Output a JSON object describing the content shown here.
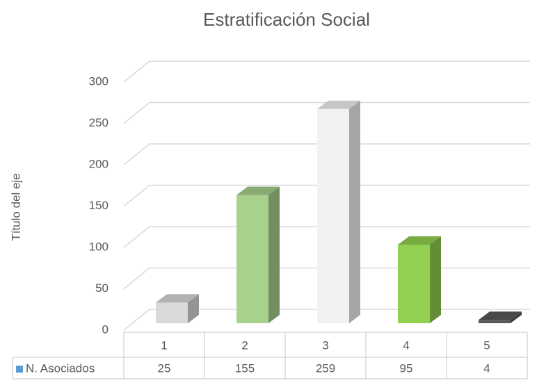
{
  "chart_data": {
    "type": "bar3d",
    "title": "Estratificación Social",
    "y_axis_label": "Título del eje",
    "categories": [
      "1",
      "2",
      "3",
      "4",
      "5"
    ],
    "series": [
      {
        "name": "N. Asociados",
        "color": "#5b9bd5",
        "values": [
          25,
          155,
          259,
          95,
          4
        ],
        "colors": [
          "#d9d9d9",
          "#a9d18e",
          "#f2f2f2",
          "#92d050",
          "#595959"
        ]
      }
    ],
    "ylim": [
      0,
      300
    ],
    "yticks": [
      0,
      50,
      100,
      150,
      200,
      250,
      300
    ],
    "grid": true,
    "legend": "table"
  }
}
